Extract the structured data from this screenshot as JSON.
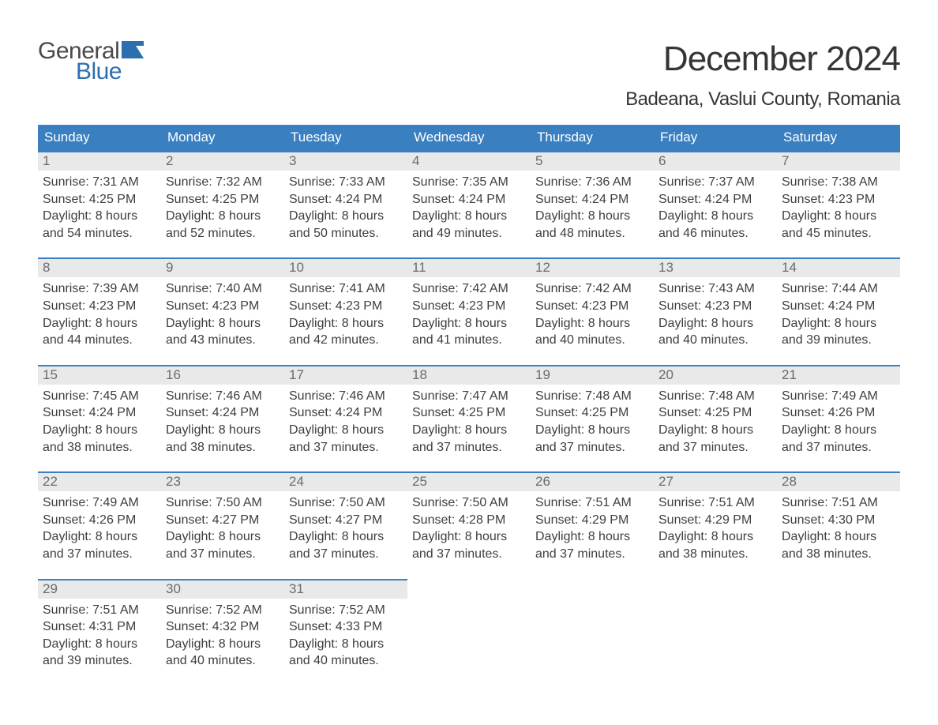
{
  "logo": {
    "word1": "General",
    "word2": "Blue",
    "flag_color": "#2b6fb0"
  },
  "title": "December 2024",
  "subtitle": "Badeana, Vaslui County, Romania",
  "colors": {
    "header_bg": "#3a7fc0",
    "header_text": "#ffffff",
    "daynum_bg": "#e9e9e9",
    "daynum_border": "#3a7fc0",
    "daynum_text": "#6b6b6b",
    "body_text": "#3e3e3e",
    "page_bg": "#ffffff"
  },
  "typography": {
    "title_fontsize": 44,
    "subtitle_fontsize": 24,
    "dow_fontsize": 17,
    "daynum_fontsize": 17,
    "body_fontsize": 16,
    "font_family": "Arial"
  },
  "days_of_week": [
    "Sunday",
    "Monday",
    "Tuesday",
    "Wednesday",
    "Thursday",
    "Friday",
    "Saturday"
  ],
  "weeks": [
    [
      {
        "n": "1",
        "sunrise": "7:31 AM",
        "sunset": "4:25 PM",
        "dh": "8",
        "dm": "54"
      },
      {
        "n": "2",
        "sunrise": "7:32 AM",
        "sunset": "4:25 PM",
        "dh": "8",
        "dm": "52"
      },
      {
        "n": "3",
        "sunrise": "7:33 AM",
        "sunset": "4:24 PM",
        "dh": "8",
        "dm": "50"
      },
      {
        "n": "4",
        "sunrise": "7:35 AM",
        "sunset": "4:24 PM",
        "dh": "8",
        "dm": "49"
      },
      {
        "n": "5",
        "sunrise": "7:36 AM",
        "sunset": "4:24 PM",
        "dh": "8",
        "dm": "48"
      },
      {
        "n": "6",
        "sunrise": "7:37 AM",
        "sunset": "4:24 PM",
        "dh": "8",
        "dm": "46"
      },
      {
        "n": "7",
        "sunrise": "7:38 AM",
        "sunset": "4:23 PM",
        "dh": "8",
        "dm": "45"
      }
    ],
    [
      {
        "n": "8",
        "sunrise": "7:39 AM",
        "sunset": "4:23 PM",
        "dh": "8",
        "dm": "44"
      },
      {
        "n": "9",
        "sunrise": "7:40 AM",
        "sunset": "4:23 PM",
        "dh": "8",
        "dm": "43"
      },
      {
        "n": "10",
        "sunrise": "7:41 AM",
        "sunset": "4:23 PM",
        "dh": "8",
        "dm": "42"
      },
      {
        "n": "11",
        "sunrise": "7:42 AM",
        "sunset": "4:23 PM",
        "dh": "8",
        "dm": "41"
      },
      {
        "n": "12",
        "sunrise": "7:42 AM",
        "sunset": "4:23 PM",
        "dh": "8",
        "dm": "40"
      },
      {
        "n": "13",
        "sunrise": "7:43 AM",
        "sunset": "4:23 PM",
        "dh": "8",
        "dm": "40"
      },
      {
        "n": "14",
        "sunrise": "7:44 AM",
        "sunset": "4:24 PM",
        "dh": "8",
        "dm": "39"
      }
    ],
    [
      {
        "n": "15",
        "sunrise": "7:45 AM",
        "sunset": "4:24 PM",
        "dh": "8",
        "dm": "38"
      },
      {
        "n": "16",
        "sunrise": "7:46 AM",
        "sunset": "4:24 PM",
        "dh": "8",
        "dm": "38"
      },
      {
        "n": "17",
        "sunrise": "7:46 AM",
        "sunset": "4:24 PM",
        "dh": "8",
        "dm": "37"
      },
      {
        "n": "18",
        "sunrise": "7:47 AM",
        "sunset": "4:25 PM",
        "dh": "8",
        "dm": "37"
      },
      {
        "n": "19",
        "sunrise": "7:48 AM",
        "sunset": "4:25 PM",
        "dh": "8",
        "dm": "37"
      },
      {
        "n": "20",
        "sunrise": "7:48 AM",
        "sunset": "4:25 PM",
        "dh": "8",
        "dm": "37"
      },
      {
        "n": "21",
        "sunrise": "7:49 AM",
        "sunset": "4:26 PM",
        "dh": "8",
        "dm": "37"
      }
    ],
    [
      {
        "n": "22",
        "sunrise": "7:49 AM",
        "sunset": "4:26 PM",
        "dh": "8",
        "dm": "37"
      },
      {
        "n": "23",
        "sunrise": "7:50 AM",
        "sunset": "4:27 PM",
        "dh": "8",
        "dm": "37"
      },
      {
        "n": "24",
        "sunrise": "7:50 AM",
        "sunset": "4:27 PM",
        "dh": "8",
        "dm": "37"
      },
      {
        "n": "25",
        "sunrise": "7:50 AM",
        "sunset": "4:28 PM",
        "dh": "8",
        "dm": "37"
      },
      {
        "n": "26",
        "sunrise": "7:51 AM",
        "sunset": "4:29 PM",
        "dh": "8",
        "dm": "37"
      },
      {
        "n": "27",
        "sunrise": "7:51 AM",
        "sunset": "4:29 PM",
        "dh": "8",
        "dm": "38"
      },
      {
        "n": "28",
        "sunrise": "7:51 AM",
        "sunset": "4:30 PM",
        "dh": "8",
        "dm": "38"
      }
    ],
    [
      {
        "n": "29",
        "sunrise": "7:51 AM",
        "sunset": "4:31 PM",
        "dh": "8",
        "dm": "39"
      },
      {
        "n": "30",
        "sunrise": "7:52 AM",
        "sunset": "4:32 PM",
        "dh": "8",
        "dm": "40"
      },
      {
        "n": "31",
        "sunrise": "7:52 AM",
        "sunset": "4:33 PM",
        "dh": "8",
        "dm": "40"
      },
      null,
      null,
      null,
      null
    ]
  ],
  "labels": {
    "sunrise_prefix": "Sunrise: ",
    "sunset_prefix": "Sunset: ",
    "daylight_prefix": "Daylight: ",
    "hours_word": " hours",
    "and_word": "and ",
    "minutes_word": " minutes."
  }
}
